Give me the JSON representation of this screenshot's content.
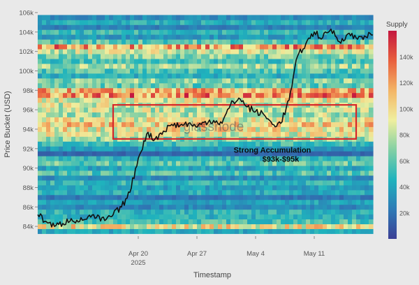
{
  "chart_data": {
    "type": "heatmap",
    "title": "",
    "xlabel": "Timestamp",
    "ylabel": "Price Bucket (USD)",
    "x_ticks": [
      "Apr 20",
      "Apr 27",
      "May 4",
      "May 11"
    ],
    "x_tick_sublabel": "2025",
    "x_range": [
      "2025-04-08",
      "2025-05-18"
    ],
    "y_ticks": [
      84,
      86,
      88,
      90,
      92,
      94,
      96,
      98,
      100,
      102,
      104,
      106
    ],
    "y_tick_labels": [
      "84k",
      "86k",
      "88k",
      "90k",
      "92k",
      "94k",
      "96k",
      "98k",
      "100k",
      "102k",
      "104k",
      "106k"
    ],
    "ylim": [
      83,
      106
    ],
    "grid": false,
    "colorbar": {
      "title": "Supply",
      "range": [
        0,
        160000
      ],
      "ticks": [
        20000,
        40000,
        60000,
        80000,
        100000,
        120000,
        140000
      ],
      "tick_labels": [
        "20k",
        "40k",
        "60k",
        "80k",
        "100k",
        "120k",
        "140k"
      ],
      "colorscale": [
        "#3b3f95",
        "#2e7bb6",
        "#1fb3bd",
        "#83d0a4",
        "#f0ef9e",
        "#f3b466",
        "#e85f3e",
        "#c4173f"
      ]
    },
    "watermark": "glassnode",
    "annotation": {
      "lines": [
        "Strong Accumulation",
        "$93k-$95k"
      ],
      "color": "#0a0a0a",
      "box": {
        "x_start": "2025-04-17",
        "x_end": "2025-05-16",
        "y_low": 93,
        "y_high": 96.5,
        "color": "#d6262a"
      }
    },
    "supply_by_price_bucket": [
      {
        "price": 83.5,
        "supply": 42000
      },
      {
        "price": 84.0,
        "supply": 95000
      },
      {
        "price": 84.5,
        "supply": 55000
      },
      {
        "price": 85.0,
        "supply": 45000
      },
      {
        "price": 85.5,
        "supply": 48000
      },
      {
        "price": 86.0,
        "supply": 28000
      },
      {
        "price": 86.5,
        "supply": 40000
      },
      {
        "price": 87.0,
        "supply": 22000
      },
      {
        "price": 87.5,
        "supply": 45000
      },
      {
        "price": 88.0,
        "supply": 38000
      },
      {
        "price": 88.5,
        "supply": 50000
      },
      {
        "price": 89.0,
        "supply": 30000
      },
      {
        "price": 89.5,
        "supply": 58000
      },
      {
        "price": 90.0,
        "supply": 40000
      },
      {
        "price": 90.5,
        "supply": 62000
      },
      {
        "price": 91.0,
        "supply": 48000
      },
      {
        "price": 91.5,
        "supply": 15000
      },
      {
        "price": 92.0,
        "supply": 35000
      },
      {
        "price": 92.5,
        "supply": 52000
      },
      {
        "price": 93.0,
        "supply": 70000
      },
      {
        "price": 93.5,
        "supply": 88000
      },
      {
        "price": 94.0,
        "supply": 95000
      },
      {
        "price": 94.5,
        "supply": 105000
      },
      {
        "price": 95.0,
        "supply": 90000
      },
      {
        "price": 95.5,
        "supply": 78000
      },
      {
        "price": 96.0,
        "supply": 82000
      },
      {
        "price": 96.5,
        "supply": 85000
      },
      {
        "price": 97.0,
        "supply": 92000
      },
      {
        "price": 97.5,
        "supply": 125000
      },
      {
        "price": 98.0,
        "supply": 110000
      },
      {
        "price": 98.5,
        "supply": 62000
      },
      {
        "price": 99.0,
        "supply": 70000
      },
      {
        "price": 99.5,
        "supply": 45000
      },
      {
        "price": 100.0,
        "supply": 58000
      },
      {
        "price": 100.5,
        "supply": 75000
      },
      {
        "price": 101.0,
        "supply": 55000
      },
      {
        "price": 101.5,
        "supply": 68000
      },
      {
        "price": 102.0,
        "supply": 85000
      },
      {
        "price": 102.5,
        "supply": 120000
      },
      {
        "price": 103.0,
        "supply": 60000
      },
      {
        "price": 103.5,
        "supply": 35000
      },
      {
        "price": 104.0,
        "supply": 50000
      },
      {
        "price": 104.5,
        "supply": 25000
      },
      {
        "price": 105.0,
        "supply": 45000
      },
      {
        "price": 105.5,
        "supply": 30000
      }
    ],
    "series": [
      {
        "line_color": "#111111",
        "x": [
          "2025-04-08",
          "2025-04-09",
          "2025-04-10",
          "2025-04-11",
          "2025-04-12",
          "2025-04-13",
          "2025-04-14",
          "2025-04-15",
          "2025-04-16",
          "2025-04-17",
          "2025-04-18",
          "2025-04-19",
          "2025-04-20",
          "2025-04-21",
          "2025-04-22",
          "2025-04-23",
          "2025-04-24",
          "2025-04-25",
          "2025-04-26",
          "2025-04-27",
          "2025-04-28",
          "2025-04-29",
          "2025-04-30",
          "2025-05-01",
          "2025-05-02",
          "2025-05-03",
          "2025-05-04",
          "2025-05-05",
          "2025-05-06",
          "2025-05-07",
          "2025-05-08",
          "2025-05-09",
          "2025-05-10",
          "2025-05-11",
          "2025-05-12",
          "2025-05-13",
          "2025-05-14",
          "2025-05-15",
          "2025-05-16",
          "2025-05-17",
          "2025-05-18"
        ],
        "y": [
          85.2,
          84.5,
          84.0,
          84.3,
          84.8,
          84.5,
          85.0,
          84.9,
          84.6,
          85.2,
          86.0,
          87.5,
          91.0,
          93.5,
          93.0,
          93.8,
          94.5,
          94.4,
          94.6,
          94.2,
          94.8,
          94.9,
          94.6,
          96.5,
          97.2,
          96.3,
          95.8,
          95.5,
          94.5,
          94.6,
          97.0,
          101.5,
          102.8,
          104.0,
          103.4,
          104.3,
          103.0,
          103.8,
          103.4,
          103.6,
          103.7
        ]
      }
    ]
  }
}
